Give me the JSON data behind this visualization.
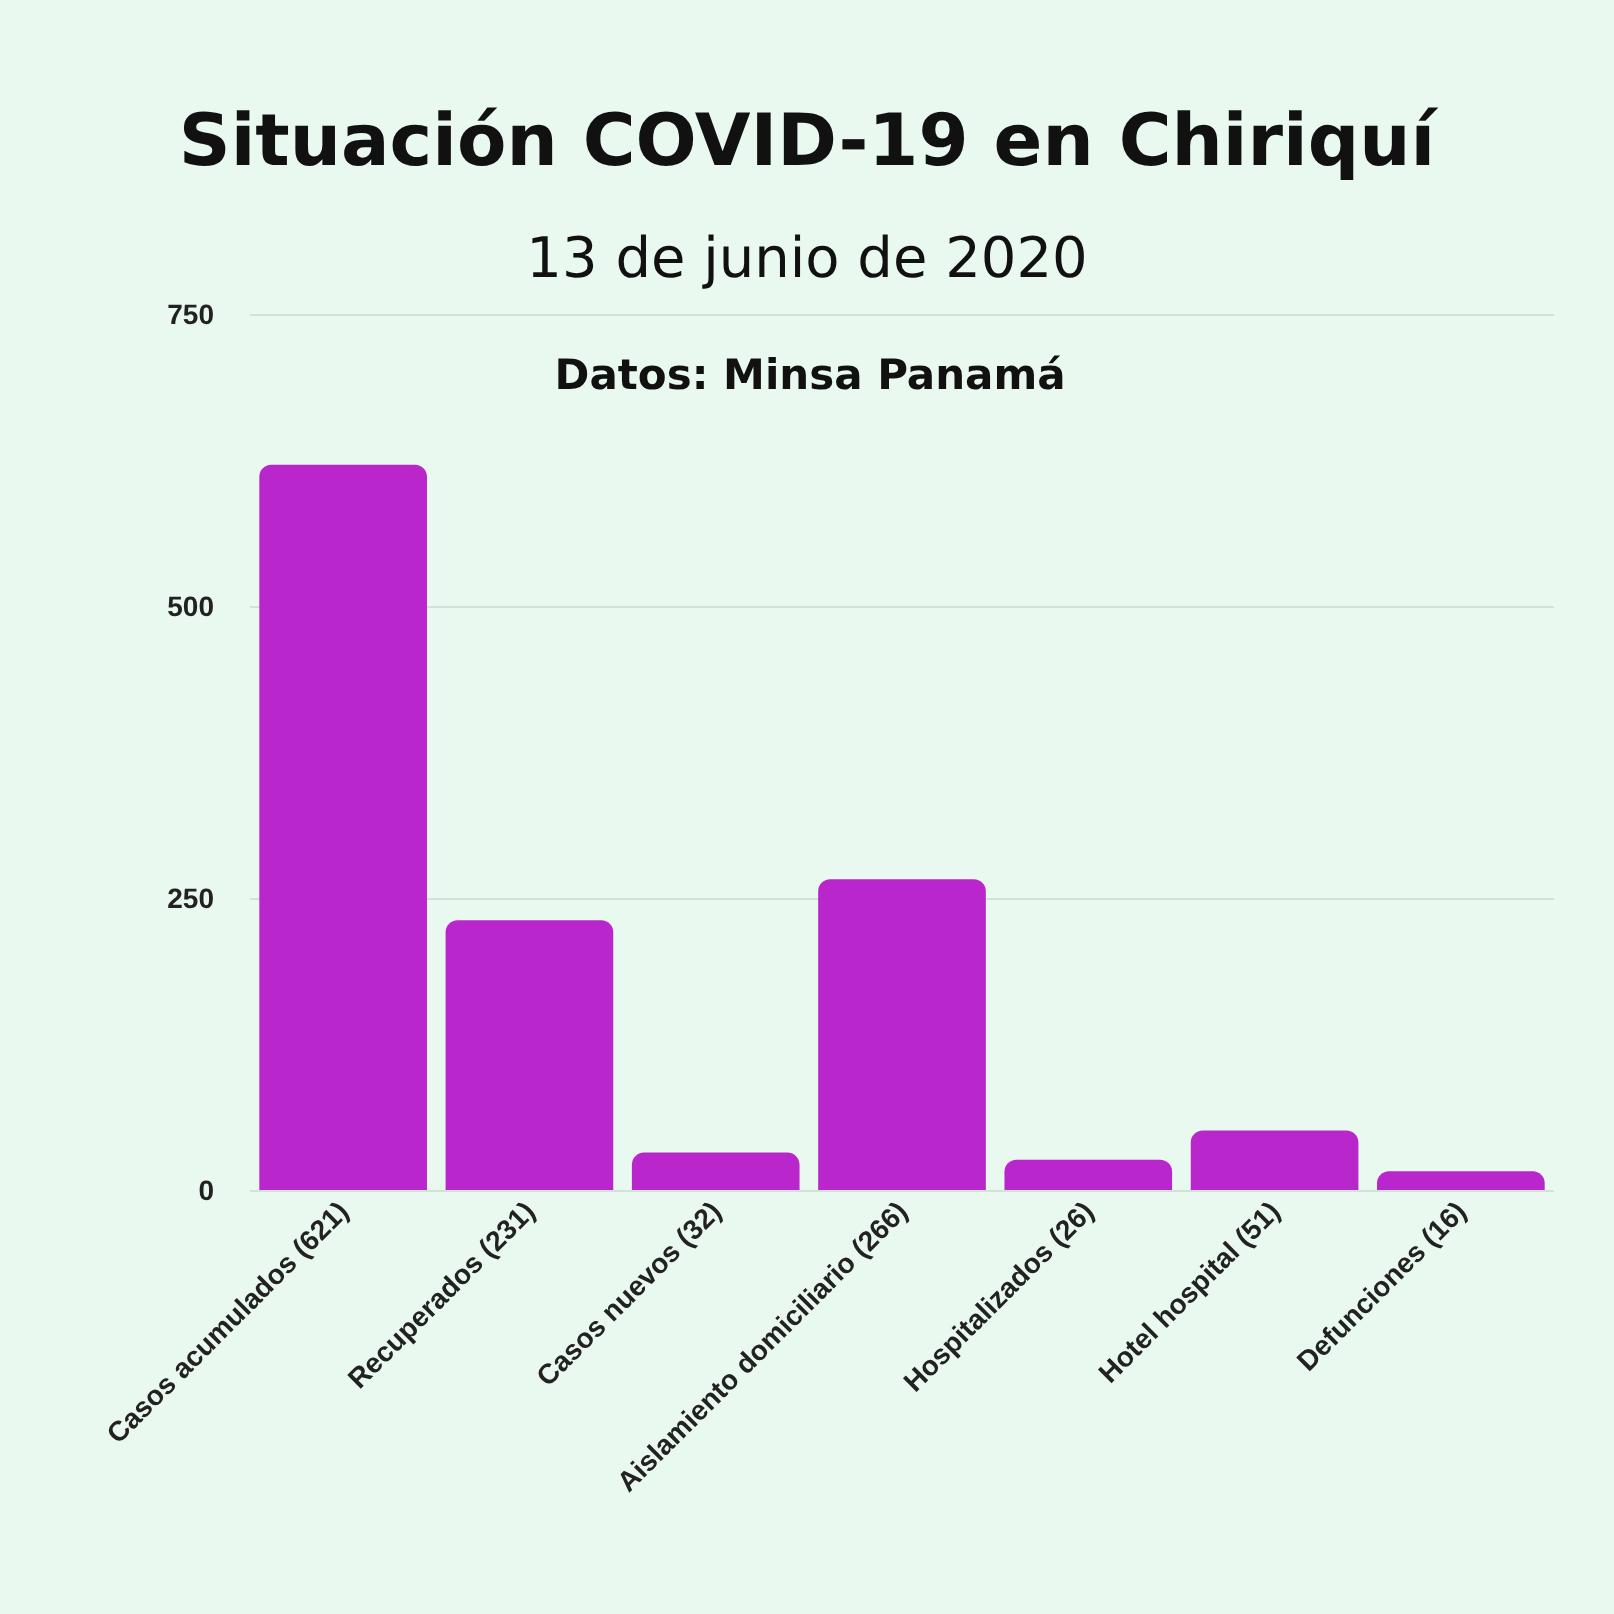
{
  "chart_data": {
    "type": "bar",
    "title": "Situación COVID-19 en Chiriquí",
    "subtitle": "13 de junio de 2020",
    "annotations": [
      "Datos: Minsa Panamá"
    ],
    "categories": [
      "Casos acumulados (621)",
      "Recuperados (231)",
      "Casos nuevos (32)",
      "Aislamiento domiciliario (266)",
      "Hospitalizados (26)",
      "Hotel hospital (51)",
      "Defunciones (16)"
    ],
    "values": [
      621,
      231,
      32,
      266,
      26,
      51,
      16
    ],
    "color": "#b926cb",
    "ylim": [
      0,
      750
    ],
    "yticks": [
      0,
      250,
      500,
      750
    ],
    "grid": "y"
  }
}
